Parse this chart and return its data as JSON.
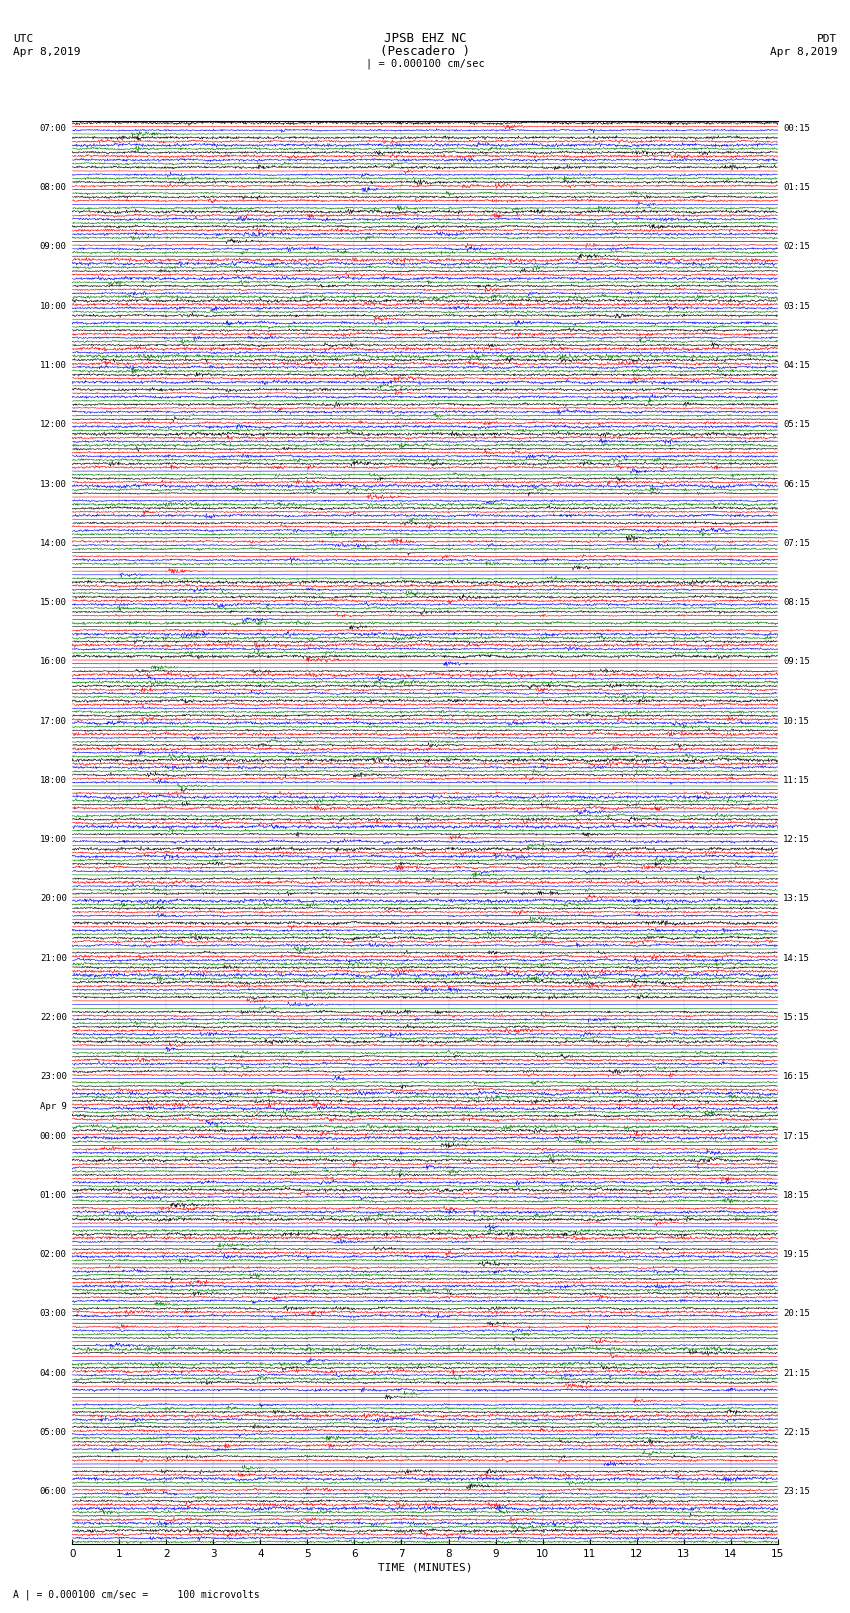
{
  "title_line1": "JPSB EHZ NC",
  "title_line2": "(Pescadero )",
  "title_line3": "| = 0.000100 cm/sec",
  "label_utc": "UTC",
  "label_pdt": "PDT",
  "label_date_left": "Apr 8,2019",
  "label_date_right": "Apr 8,2019",
  "xlabel": "TIME (MINUTES)",
  "footnote": "A | = 0.000100 cm/sec =     100 microvolts",
  "xlim": [
    0,
    15
  ],
  "xticks": [
    0,
    1,
    2,
    3,
    4,
    5,
    6,
    7,
    8,
    9,
    10,
    11,
    12,
    13,
    14,
    15
  ],
  "bg_color": "#ffffff",
  "trace_colors": [
    "black",
    "red",
    "blue",
    "green"
  ],
  "n_rows": 96,
  "traces_per_row": 4,
  "noise_scale": 0.3,
  "left_labels_utc": [
    "07:00",
    "08:00",
    "09:00",
    "10:00",
    "11:00",
    "12:00",
    "13:00",
    "14:00",
    "15:00",
    "16:00",
    "17:00",
    "18:00",
    "19:00",
    "20:00",
    "21:00",
    "22:00",
    "23:00",
    "Apr 9",
    "00:00",
    "01:00",
    "02:00",
    "03:00",
    "04:00",
    "05:00",
    "06:00"
  ],
  "right_labels_pdt": [
    "00:15",
    "01:15",
    "02:15",
    "03:15",
    "04:15",
    "05:15",
    "06:15",
    "07:15",
    "08:15",
    "09:15",
    "10:15",
    "11:15",
    "12:15",
    "13:15",
    "14:15",
    "15:15",
    "16:15",
    "17:15",
    "18:15",
    "19:15",
    "20:15",
    "21:15",
    "22:15",
    "23:15"
  ],
  "label_row_indices": [
    0,
    4,
    8,
    12,
    16,
    20,
    24,
    28,
    32,
    36,
    40,
    44,
    48,
    52,
    56,
    60,
    64,
    66,
    68,
    72,
    76,
    80,
    84,
    88,
    92
  ],
  "right_label_row_indices": [
    0,
    4,
    8,
    12,
    16,
    20,
    24,
    28,
    32,
    36,
    40,
    44,
    48,
    52,
    56,
    60,
    64,
    68,
    72,
    76,
    80,
    84,
    88,
    92
  ],
  "seed": 42
}
